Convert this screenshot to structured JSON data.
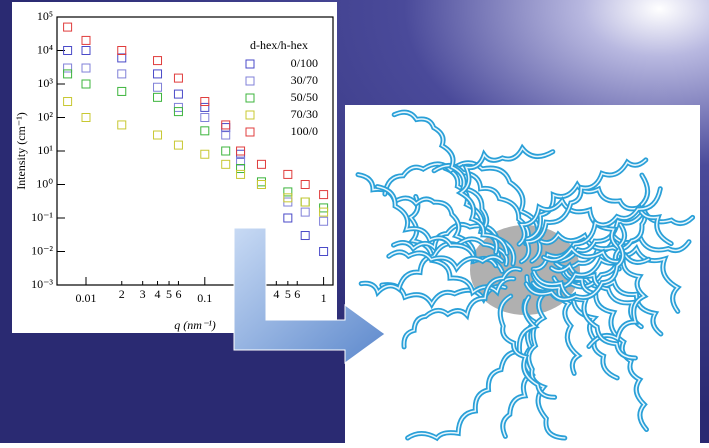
{
  "chart_data": {
    "type": "scatter",
    "xlabel": "q (nm⁻¹)",
    "ylabel": "Intensity (cm⁻¹)",
    "log_x": true,
    "log_y": true,
    "grid": false,
    "legend_title": "d-hex/h-hex",
    "legend_position": "upper right",
    "xlim": [
      0.0057,
      1.2
    ],
    "ylim": [
      0.001,
      100000
    ],
    "xticks": [
      {
        "value": 0.01,
        "label": "0.01"
      },
      {
        "value": 0.02,
        "label": "2"
      },
      {
        "value": 0.03,
        "label": "3"
      },
      {
        "value": 0.04,
        "label": "4"
      },
      {
        "value": 0.05,
        "label": "5"
      },
      {
        "value": 0.06,
        "label": "6"
      },
      {
        "value": 0.1,
        "label": "0.1"
      },
      {
        "value": 0.4,
        "label": "4"
      },
      {
        "value": 0.5,
        "label": "5"
      },
      {
        "value": 0.6,
        "label": "6"
      },
      1
    ],
    "yticks": [
      {
        "value": 0.001,
        "label": "10⁻³"
      },
      {
        "value": 0.01,
        "label": "10⁻²"
      },
      {
        "value": 0.1,
        "label": "10⁻¹"
      },
      {
        "value": 1,
        "label": "10⁰"
      },
      {
        "value": 10,
        "label": "10¹"
      },
      {
        "value": 100,
        "label": "10²"
      },
      {
        "value": 1000,
        "label": "10³"
      },
      {
        "value": 10000,
        "label": "10⁴"
      },
      {
        "value": 100000,
        "label": "10⁵"
      }
    ],
    "x": [
      0.007,
      0.01,
      0.02,
      0.04,
      0.06,
      0.1,
      0.15,
      0.2,
      0.3,
      0.5,
      0.7,
      1
    ],
    "series": [
      {
        "name": "0/100",
        "color": "#4a4ac8",
        "values": [
          10000,
          10000,
          6000,
          2000,
          500,
          200,
          50,
          8,
          1,
          0.1,
          0.03,
          0.01
        ]
      },
      {
        "name": "30/70",
        "color": "#8080d8",
        "values": [
          3000,
          3000,
          2000,
          800,
          200,
          100,
          30,
          5,
          1,
          0.3,
          0.15,
          0.08
        ]
      },
      {
        "name": "50/50",
        "color": "#3cb43c",
        "values": [
          2000,
          1000,
          600,
          400,
          150,
          40,
          10,
          3,
          1.2,
          0.6,
          0.3,
          0.2
        ]
      },
      {
        "name": "70/30",
        "color": "#c8c832",
        "values": [
          300,
          100,
          60,
          30,
          15,
          8,
          4,
          2,
          1,
          0.4,
          0.3,
          0.15
        ]
      },
      {
        "name": "100/0",
        "color": "#e03c3c",
        "values": [
          50000,
          20000,
          10000,
          5000,
          1500,
          300,
          60,
          10,
          4,
          2,
          1,
          0.5
        ]
      }
    ]
  }
}
